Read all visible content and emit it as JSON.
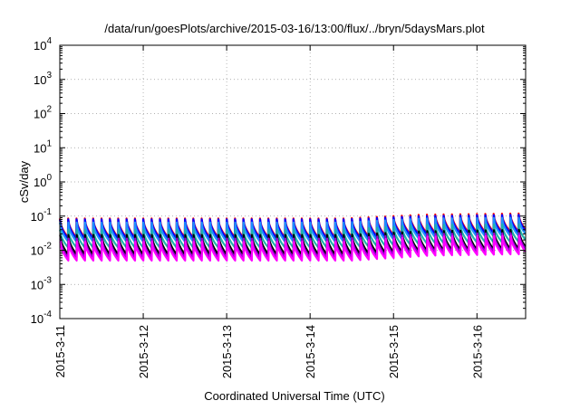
{
  "chart_data": {
    "type": "line",
    "title": "/data/run/goesPlots/archive/2015-03-16/13:00/flux/../bryn/5daysMars.plot",
    "xlabel": "Coordinated Universal Time (UTC)",
    "ylabel": "cSv/day",
    "yscale": "log",
    "ylim": [
      0.0001,
      10000
    ],
    "xlim": [
      "2015-03-11 00:00",
      "2015-03-16 14:00"
    ],
    "grid": true,
    "y_ticks": [
      {
        "base": "10",
        "exp": "-4"
      },
      {
        "base": "10",
        "exp": "-3"
      },
      {
        "base": "10",
        "exp": "-2"
      },
      {
        "base": "10",
        "exp": "-1"
      },
      {
        "base": "10",
        "exp": "0"
      },
      {
        "base": "10",
        "exp": "1"
      },
      {
        "base": "10",
        "exp": "2"
      },
      {
        "base": "10",
        "exp": "3"
      },
      {
        "base": "10",
        "exp": "4"
      }
    ],
    "x_ticks": [
      "2015-3-11",
      "2015-3-12",
      "2015-3-13",
      "2015-3-14",
      "2015-3-15",
      "2015-3-16"
    ],
    "series": [
      {
        "color": "#ff0000",
        "period_start_max": [
          [
            0,
            0.085
          ],
          [
            3.4,
            0.085
          ],
          [
            4.35,
            0.11
          ],
          [
            5.6,
            0.12
          ]
        ],
        "period_start_min": [
          [
            0,
            0.024
          ],
          [
            3.4,
            0.024
          ],
          [
            4.35,
            0.033
          ],
          [
            5.6,
            0.036
          ]
        ]
      },
      {
        "color": "#0000ff",
        "period_start_max": [
          [
            0,
            0.08
          ],
          [
            3.4,
            0.08
          ],
          [
            4.35,
            0.1
          ],
          [
            5.6,
            0.11
          ]
        ],
        "period_start_min": [
          [
            0,
            0.022
          ],
          [
            3.4,
            0.022
          ],
          [
            4.35,
            0.03
          ],
          [
            5.6,
            0.033
          ]
        ]
      },
      {
        "color": "#1e90ff",
        "period_start_max": [
          [
            0,
            0.065
          ],
          [
            3.4,
            0.065
          ],
          [
            4.35,
            0.085
          ],
          [
            5.6,
            0.09
          ]
        ],
        "period_start_min": [
          [
            0,
            0.018
          ],
          [
            3.4,
            0.018
          ],
          [
            4.35,
            0.024
          ],
          [
            5.6,
            0.027
          ]
        ]
      },
      {
        "color": "#20b2aa",
        "period_start_max": [
          [
            0,
            0.04
          ],
          [
            3.4,
            0.04
          ],
          [
            4.35,
            0.055
          ],
          [
            5.6,
            0.058
          ]
        ],
        "period_start_min": [
          [
            0,
            0.012
          ],
          [
            3.4,
            0.012
          ],
          [
            4.35,
            0.016
          ],
          [
            5.6,
            0.018
          ]
        ]
      },
      {
        "color": "#000000",
        "period_start_max": [
          [
            0,
            0.028
          ],
          [
            3.4,
            0.028
          ],
          [
            4.35,
            0.036
          ],
          [
            5.6,
            0.04
          ]
        ],
        "period_start_min": [
          [
            0,
            0.0075
          ],
          [
            3.4,
            0.0075
          ],
          [
            4.35,
            0.01
          ],
          [
            5.6,
            0.011
          ]
        ]
      },
      {
        "color": "#9400d3",
        "period_start_max": [
          [
            0,
            0.022
          ],
          [
            3.4,
            0.022
          ],
          [
            4.35,
            0.03
          ],
          [
            5.6,
            0.032
          ]
        ],
        "period_start_min": [
          [
            0,
            0.006
          ],
          [
            3.4,
            0.006
          ],
          [
            4.35,
            0.0085
          ],
          [
            5.6,
            0.0095
          ]
        ]
      },
      {
        "color": "#ff00ff",
        "period_start_max": [
          [
            0,
            0.018
          ],
          [
            3.4,
            0.018
          ],
          [
            4.35,
            0.025
          ],
          [
            5.6,
            0.027
          ]
        ],
        "period_start_min": [
          [
            0,
            0.005
          ],
          [
            3.4,
            0.005
          ],
          [
            4.35,
            0.007
          ],
          [
            5.6,
            0.0078
          ]
        ]
      }
    ],
    "cycle_days": 0.1
  }
}
